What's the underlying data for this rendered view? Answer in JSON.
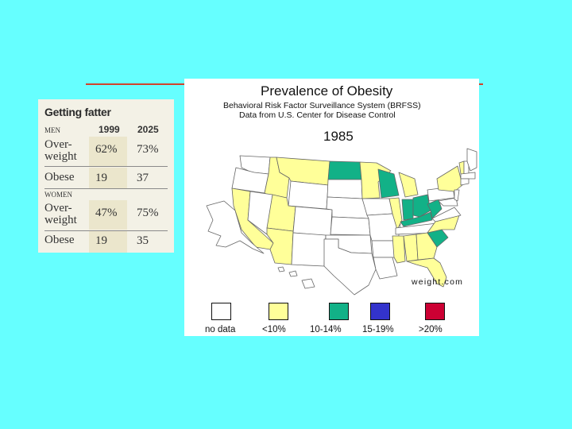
{
  "table": {
    "title": "Getting fatter",
    "group_men": "MEN",
    "group_women": "WOMEN",
    "year1": "1999",
    "year2": "2025",
    "rows": [
      {
        "label_line1": "Over-",
        "label_line2": "weight",
        "v1": "62%",
        "v2": "73%"
      },
      {
        "label_line1": "Obese",
        "label_line2": "",
        "v1": "19",
        "v2": "37"
      },
      {
        "label_line1": "Over-",
        "label_line2": "weight",
        "v1": "47%",
        "v2": "75%"
      },
      {
        "label_line1": "Obese",
        "label_line2": "",
        "v1": "19",
        "v2": "35"
      }
    ]
  },
  "map": {
    "title": "Prevalence of Obesity",
    "subtitle_line1": "Behavioral Risk Factor Surveillance System (BRFSS)",
    "subtitle_line2": "Data from U.S. Center for Disease Control",
    "year": "1985",
    "brand": "weight.com",
    "colors": {
      "no_data": "#ffffff",
      "lt10": "#ffff99",
      "10_14": "#12b187",
      "15_19": "#3333cc",
      "gt20": "#cc0033",
      "outline": "#666666"
    },
    "legend": [
      {
        "label": "no data",
        "color": "#ffffff"
      },
      {
        "label": "<10%",
        "color": "#ffff99"
      },
      {
        "label": "10-14%",
        "color": "#12b187"
      },
      {
        "label": "15-19%",
        "color": "#3333cc"
      },
      {
        "label": ">20%",
        "color": "#cc0033"
      }
    ]
  }
}
